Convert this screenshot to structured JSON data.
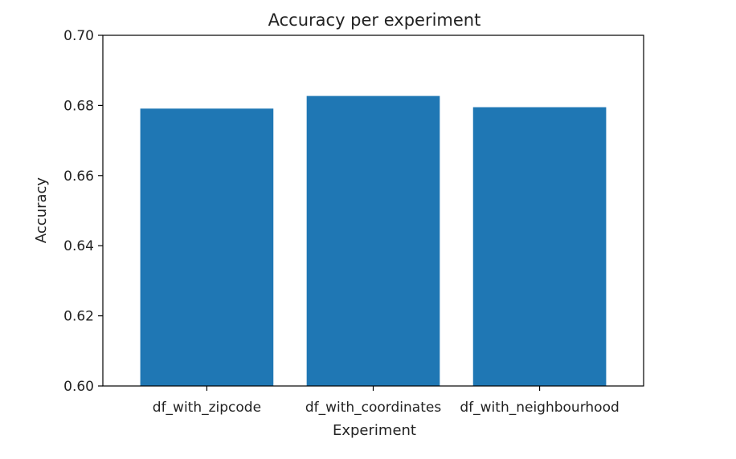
{
  "chart_data": {
    "type": "bar",
    "title": "Accuracy per experiment",
    "xlabel": "Experiment",
    "ylabel": "Accuracy",
    "categories": [
      "df_with_zipcode",
      "df_with_coordinates",
      "df_with_neighbourhood"
    ],
    "values": [
      0.6791,
      0.6827,
      0.6795
    ],
    "ylim": [
      0.6,
      0.7
    ],
    "yticks": [
      0.6,
      0.62,
      0.64,
      0.66,
      0.68,
      0.7
    ],
    "ytick_labels": [
      "0.60",
      "0.62",
      "0.64",
      "0.66",
      "0.68",
      "0.70"
    ],
    "bar_color": "#1f77b4",
    "grid": false,
    "legend": "none"
  }
}
